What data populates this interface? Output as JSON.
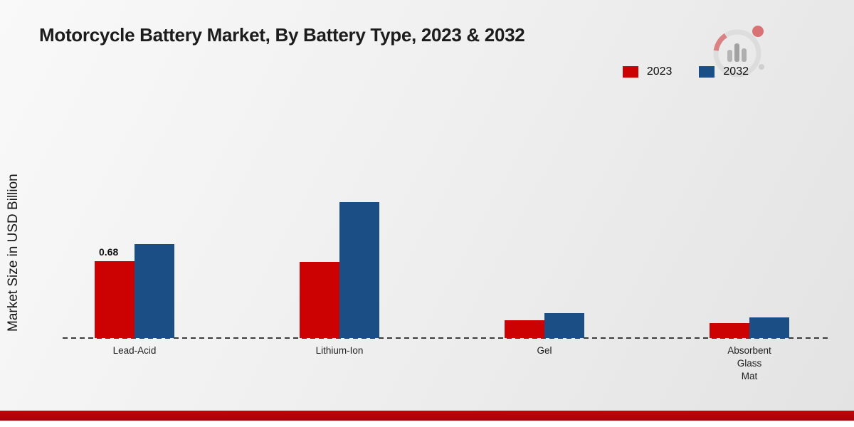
{
  "page": {
    "title": "Motorcycle Battery Market, By Battery Type, 2023 & 2032",
    "ylabel": "Market Size in USD Billion"
  },
  "legend": {
    "items": [
      {
        "label": "2023",
        "color": "#cc0202"
      },
      {
        "label": "2032",
        "color": "#1a4e85"
      }
    ]
  },
  "colors": {
    "series_2023": "#cc0202",
    "series_2032": "#1a4e85",
    "footer_band": "#b50408",
    "background": "#efefef"
  },
  "chart_data": {
    "type": "bar",
    "title": "Motorcycle Battery Market, By Battery Type, 2023 & 2032",
    "ylabel": "Market Size in USD Billion",
    "xlabel": "",
    "categories": [
      "Lead-Acid",
      "Lithium-Ion",
      "Gel",
      "Absorbent Glass Mat"
    ],
    "tick_labels": [
      "Lead-Acid",
      "Lithium-Ion",
      "Gel",
      "Absorbent\nGlass\nMat"
    ],
    "series": [
      {
        "name": "2023",
        "color": "#cc0202",
        "values": [
          0.68,
          0.67,
          0.16,
          0.13
        ],
        "labels": [
          "0.68",
          "",
          "",
          ""
        ]
      },
      {
        "name": "2032",
        "color": "#1a4e85",
        "values": [
          0.83,
          1.2,
          0.22,
          0.18
        ],
        "labels": [
          "",
          "",
          "",
          ""
        ]
      }
    ],
    "ylim": [
      0,
      1.25
    ],
    "grid": false,
    "baseline_style": "dashed",
    "legend_position": "top-right"
  }
}
